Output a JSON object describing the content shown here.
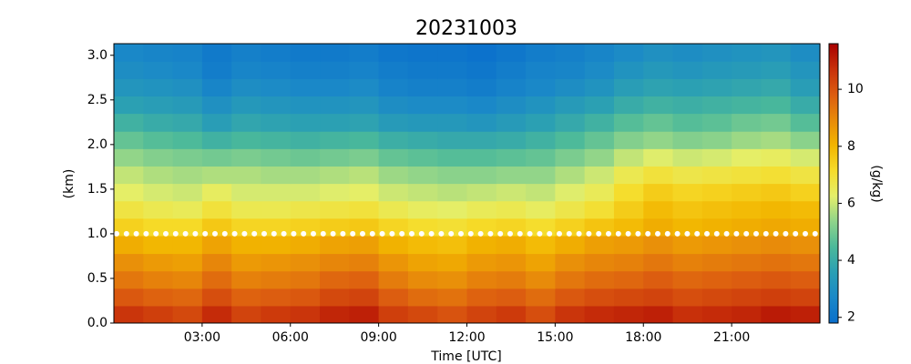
{
  "chart_data": {
    "type": "heatmap",
    "title": "20231003",
    "xlabel": "Time [UTC]",
    "ylabel": "(km)",
    "colorbar_label": "(g/kg)",
    "xlim": [
      0,
      24
    ],
    "xticks": [
      {
        "value": 3,
        "label": "03:00"
      },
      {
        "value": 6,
        "label": "06:00"
      },
      {
        "value": 9,
        "label": "09:00"
      },
      {
        "value": 12,
        "label": "12:00"
      },
      {
        "value": 15,
        "label": "15:00"
      },
      {
        "value": 18,
        "label": "18:00"
      },
      {
        "value": 21,
        "label": "21:00"
      }
    ],
    "ylim": [
      0,
      3.13
    ],
    "yticks": [
      {
        "value": 0,
        "label": "0.0"
      },
      0.5,
      {
        "value": 1,
        "label": "1.0"
      },
      1.5,
      {
        "value": 2,
        "label": "2.0"
      },
      2.5,
      {
        "value": 3,
        "label": "3.0"
      }
    ],
    "clim": [
      1.8,
      11.6
    ],
    "cticks": [
      2,
      4,
      6,
      8,
      10
    ],
    "colormap": [
      "#0a6fcc",
      "#1a88c8",
      "#2a9fb4",
      "#4bb99a",
      "#8fd48a",
      "#e4ef6a",
      "#f6dc2a",
      "#f2b500",
      "#e88a0a",
      "#dc5c10",
      "#c8300a",
      "#a80000"
    ],
    "hline": 1,
    "hline_color": "#ffffff",
    "x": [
      0.5,
      1.5,
      2.5,
      3.5,
      4.5,
      5.5,
      6.5,
      7.5,
      8.5,
      9.5,
      10.5,
      11.5,
      12.5,
      13.5,
      14.5,
      15.5,
      16.5,
      17.5,
      18.5,
      19.5,
      20.5,
      21.5,
      22.5,
      23.5
    ],
    "y": [
      0.1,
      0.29,
      0.49,
      0.68,
      0.88,
      1.08,
      1.27,
      1.47,
      1.66,
      1.86,
      2.05,
      2.25,
      2.45,
      2.64,
      2.84,
      3.03
    ],
    "values": [
      [
        10.6,
        10.4,
        10.2,
        10.8,
        10.3,
        10.5,
        10.6,
        10.9,
        11.0,
        10.4,
        10.2,
        10.0,
        10.3,
        10.5,
        10.1,
        10.6,
        10.8,
        10.9,
        11.0,
        10.7,
        10.8,
        10.9,
        11.1,
        11.0
      ],
      [
        9.9,
        9.7,
        9.6,
        10.1,
        9.7,
        9.8,
        9.9,
        10.2,
        10.3,
        9.8,
        9.5,
        9.4,
        9.7,
        9.8,
        9.5,
        9.9,
        10.1,
        10.2,
        10.3,
        10.1,
        10.2,
        10.3,
        10.4,
        10.3
      ],
      [
        9.3,
        9.1,
        9.0,
        9.5,
        9.1,
        9.2,
        9.3,
        9.6,
        9.7,
        9.2,
        8.9,
        8.8,
        9.1,
        9.2,
        8.9,
        9.3,
        9.5,
        9.6,
        9.8,
        9.6,
        9.7,
        9.8,
        9.9,
        9.8
      ],
      [
        8.8,
        8.6,
        8.5,
        9.0,
        8.6,
        8.7,
        8.8,
        9.0,
        9.1,
        8.7,
        8.4,
        8.3,
        8.6,
        8.7,
        8.4,
        8.8,
        9.0,
        9.1,
        9.3,
        9.1,
        9.2,
        9.3,
        9.4,
        9.3
      ],
      [
        8.2,
        8.0,
        8.0,
        8.4,
        8.1,
        8.1,
        8.2,
        8.4,
        8.5,
        8.1,
        7.9,
        7.8,
        8.1,
        8.2,
        7.9,
        8.2,
        8.5,
        8.6,
        8.8,
        8.6,
        8.7,
        8.8,
        8.9,
        8.8
      ],
      [
        7.4,
        7.2,
        7.2,
        7.6,
        7.3,
        7.3,
        7.4,
        7.5,
        7.6,
        7.3,
        7.1,
        7.0,
        7.2,
        7.3,
        7.1,
        7.4,
        7.7,
        7.9,
        8.2,
        8.0,
        8.1,
        8.2,
        8.3,
        8.2
      ],
      [
        6.8,
        6.6,
        6.5,
        6.9,
        6.6,
        6.6,
        6.7,
        6.8,
        6.9,
        6.6,
        6.4,
        6.3,
        6.5,
        6.6,
        6.4,
        6.7,
        7.0,
        7.5,
        7.9,
        7.7,
        7.8,
        7.9,
        8.0,
        7.9
      ],
      [
        6.3,
        6.1,
        6.0,
        6.4,
        6.1,
        6.1,
        6.1,
        6.2,
        6.3,
        6.0,
        5.9,
        5.8,
        5.9,
        6.0,
        5.9,
        6.2,
        6.5,
        7.1,
        7.5,
        7.3,
        7.4,
        7.5,
        7.6,
        7.4
      ],
      [
        5.9,
        5.7,
        5.6,
        5.7,
        5.7,
        5.6,
        5.6,
        5.7,
        5.8,
        5.5,
        5.4,
        5.3,
        5.3,
        5.4,
        5.4,
        5.7,
        6.0,
        6.6,
        6.9,
        6.7,
        6.8,
        6.9,
        7.0,
        6.8
      ],
      [
        5.4,
        5.2,
        5.1,
        5.0,
        5.1,
        5.0,
        4.9,
        5.0,
        5.1,
        4.8,
        4.7,
        4.6,
        4.6,
        4.7,
        4.8,
        5.1,
        5.4,
        5.9,
        6.2,
        6.0,
        6.1,
        6.3,
        6.4,
        6.1
      ],
      [
        4.8,
        4.6,
        4.5,
        4.2,
        4.4,
        4.3,
        4.2,
        4.3,
        4.4,
        4.1,
        4.0,
        3.9,
        3.9,
        4.0,
        4.2,
        4.5,
        4.8,
        5.2,
        5.4,
        5.2,
        5.3,
        5.5,
        5.6,
        5.3
      ],
      [
        4.2,
        4.0,
        3.9,
        3.5,
        3.8,
        3.7,
        3.6,
        3.6,
        3.7,
        3.4,
        3.3,
        3.3,
        3.2,
        3.4,
        3.6,
        3.9,
        4.2,
        4.6,
        4.8,
        4.6,
        4.7,
        4.9,
        5.0,
        4.6
      ],
      [
        3.6,
        3.5,
        3.4,
        3.0,
        3.3,
        3.2,
        3.1,
        3.1,
        3.2,
        2.9,
        2.8,
        2.8,
        2.7,
        2.9,
        3.1,
        3.4,
        3.6,
        4.0,
        4.2,
        4.1,
        4.2,
        4.3,
        4.4,
        4.0
      ],
      [
        3.2,
        3.1,
        3.0,
        2.6,
        2.9,
        2.8,
        2.7,
        2.7,
        2.8,
        2.5,
        2.4,
        2.4,
        2.3,
        2.5,
        2.7,
        2.9,
        3.1,
        3.5,
        3.7,
        3.6,
        3.7,
        3.8,
        3.9,
        3.5
      ],
      [
        2.9,
        2.8,
        2.7,
        2.3,
        2.6,
        2.5,
        2.4,
        2.4,
        2.5,
        2.3,
        2.2,
        2.2,
        2.1,
        2.3,
        2.5,
        2.6,
        2.8,
        3.1,
        3.3,
        3.2,
        3.3,
        3.4,
        3.5,
        3.2
      ],
      [
        2.7,
        2.6,
        2.5,
        2.2,
        2.4,
        2.3,
        2.2,
        2.2,
        2.3,
        2.1,
        2.0,
        2.0,
        1.9,
        2.1,
        2.3,
        2.4,
        2.6,
        2.8,
        3.0,
        2.9,
        3.0,
        3.1,
        3.2,
        2.9
      ]
    ]
  }
}
